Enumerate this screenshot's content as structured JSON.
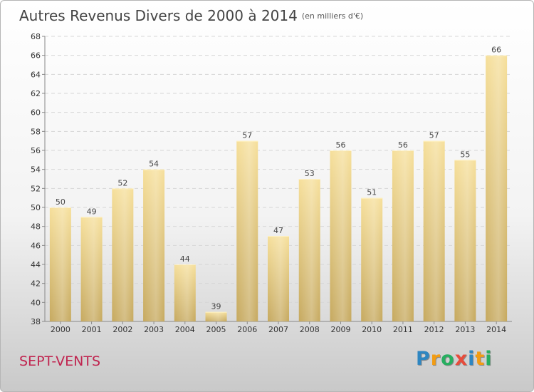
{
  "title": "Autres Revenus Divers de 2000 à 2014",
  "unit": "(en milliers d'€)",
  "commune": "SEPT-VENTS",
  "logo": {
    "letters": [
      "P",
      "r",
      "o",
      "x",
      "i",
      "t",
      "i"
    ],
    "colors": [
      "#2e86c1",
      "#f39c12",
      "#27ae60",
      "#e74c3c",
      "#2e86c1",
      "#f39c12",
      "#27ae60"
    ]
  },
  "chart_data": {
    "type": "bar",
    "categories": [
      "2000",
      "2001",
      "2002",
      "2003",
      "2004",
      "2005",
      "2006",
      "2007",
      "2008",
      "2009",
      "2010",
      "2011",
      "2012",
      "2013",
      "2014"
    ],
    "values": [
      50,
      49,
      52,
      54,
      44,
      39,
      57,
      47,
      53,
      56,
      51,
      56,
      57,
      55,
      66
    ],
    "ylim": [
      38,
      68
    ],
    "yticks": [
      38,
      40,
      42,
      44,
      46,
      48,
      50,
      52,
      54,
      56,
      58,
      60,
      62,
      64,
      66,
      68
    ],
    "grid": true,
    "bar_color": "#e9cf86"
  }
}
